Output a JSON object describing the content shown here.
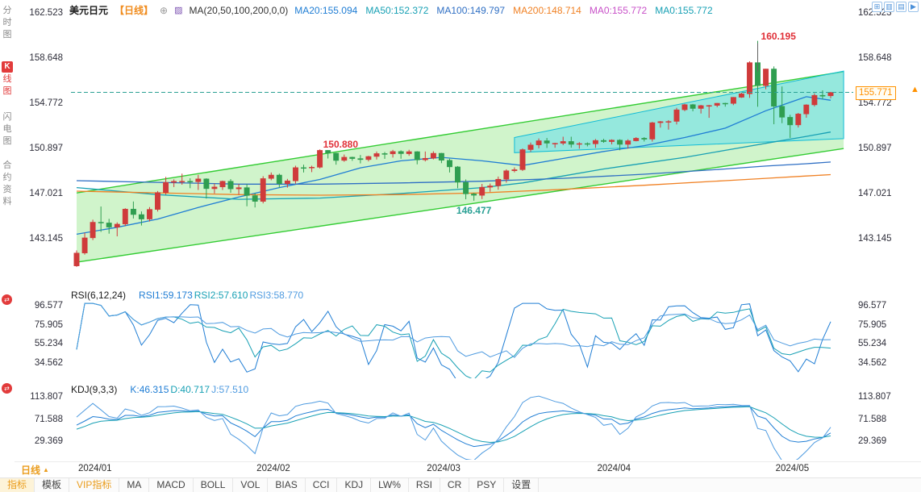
{
  "icons": {
    "add": "⊕",
    "ma_badge": "▨",
    "caret_up": "▲",
    "price_arrow": "▲",
    "swap": "⇄"
  },
  "sidebar": {
    "items": [
      {
        "name": "time-share-chart",
        "label": "分时图",
        "active": false
      },
      {
        "name": "kline-chart",
        "label": "K线图",
        "active": true
      },
      {
        "name": "lightning-chart",
        "label": "闪电图",
        "active": false
      },
      {
        "name": "contract-info",
        "label": "合约资料",
        "active": false
      }
    ]
  },
  "header": {
    "symbol": "美元日元",
    "period_tag": "【日线】",
    "ma_group": "MA(20,50,100,200,0,0)",
    "ma_values": [
      {
        "label": "MA20:155.094",
        "color": "#1f7dd4"
      },
      {
        "label": "MA50:152.372",
        "color": "#17a0b4"
      },
      {
        "label": "MA100:149.797",
        "color": "#2f6fc4"
      },
      {
        "label": "MA200:148.714",
        "color": "#f08124"
      },
      {
        "label": "MA0:155.772",
        "color": "#c850c8"
      },
      {
        "label": "MA0:155.772",
        "color": "#17a0b4"
      }
    ],
    "icons": [
      {
        "name": "grid-layout-icon",
        "glyph": "⊞"
      },
      {
        "name": "candle-chart-icon",
        "glyph": "▥"
      },
      {
        "name": "bar-chart-icon",
        "glyph": "▤"
      },
      {
        "name": "forward-icon",
        "glyph": "▶"
      }
    ]
  },
  "chart_data": [
    {
      "type": "candlestick",
      "symbol": "美元日元",
      "period": "日线",
      "y_ticks": [
        162.523,
        158.648,
        154.772,
        150.897,
        147.021,
        143.145
      ],
      "x_labels": [
        "2024/01",
        "2024/02",
        "2024/03",
        "2024/04",
        "2024/05"
      ],
      "x_label_indices": [
        0,
        22,
        43,
        64,
        86
      ],
      "current_price": 155.771,
      "current_price_text": "155.771",
      "up_color": "#cf3b3b",
      "down_color": "#2f9e50",
      "price_line": {
        "value": 155.771,
        "color": "#2aa094",
        "style": "dashed"
      },
      "candles": [
        [
          140.88,
          142.21,
          140.8,
          141.99
        ],
        [
          141.99,
          143.73,
          141.85,
          143.29
        ],
        [
          143.29,
          144.85,
          143.1,
          144.63
        ],
        [
          144.63,
          145.98,
          143.8,
          144.57
        ],
        [
          144.57,
          144.92,
          143.65,
          144.21
        ],
        [
          144.21,
          144.62,
          143.42,
          144.47
        ],
        [
          144.47,
          145.83,
          144.3,
          145.76
        ],
        [
          145.76,
          146.41,
          144.95,
          145.29
        ],
        [
          145.29,
          145.56,
          144.35,
          144.9
        ],
        [
          144.9,
          145.93,
          144.7,
          145.73
        ],
        [
          145.73,
          147.31,
          145.55,
          147.18
        ],
        [
          147.18,
          148.52,
          146.99,
          148.05
        ],
        [
          148.05,
          148.31,
          147.65,
          148.14
        ],
        [
          148.14,
          148.8,
          147.85,
          148.15
        ],
        [
          148.15,
          148.4,
          147.55,
          148.1
        ],
        [
          148.1,
          148.7,
          147.4,
          148.35
        ],
        [
          148.35,
          148.4,
          146.66,
          147.51
        ],
        [
          147.51,
          147.95,
          147.1,
          147.66
        ],
        [
          147.66,
          148.2,
          147.4,
          148.15
        ],
        [
          148.15,
          148.33,
          147.16,
          147.49
        ],
        [
          147.49,
          147.91,
          147.0,
          147.6
        ],
        [
          147.6,
          147.9,
          146.0,
          146.92
        ],
        [
          146.92,
          147.12,
          145.9,
          146.42
        ],
        [
          146.42,
          148.58,
          146.25,
          148.38
        ],
        [
          148.38,
          148.9,
          148.23,
          148.68
        ],
        [
          148.68,
          148.8,
          147.61,
          147.94
        ],
        [
          147.94,
          148.35,
          147.6,
          148.18
        ],
        [
          148.18,
          149.48,
          147.95,
          149.32
        ],
        [
          149.32,
          149.57,
          148.9,
          149.29
        ],
        [
          149.29,
          149.48,
          148.93,
          149.35
        ],
        [
          149.35,
          150.88,
          149.24,
          150.8
        ],
        [
          150.8,
          150.82,
          150.1,
          150.56
        ],
        [
          150.56,
          150.6,
          149.57,
          149.93
        ],
        [
          149.93,
          150.44,
          149.82,
          150.21
        ],
        [
          150.21,
          150.25,
          149.9,
          150.09
        ],
        [
          150.09,
          150.4,
          149.68,
          150.0
        ],
        [
          150.0,
          150.33,
          149.85,
          150.27
        ],
        [
          150.27,
          150.7,
          150.01,
          150.52
        ],
        [
          150.52,
          150.66,
          150.07,
          150.49
        ],
        [
          150.49,
          150.84,
          150.18,
          150.7
        ],
        [
          150.7,
          150.8,
          150.08,
          150.51
        ],
        [
          150.51,
          150.85,
          150.33,
          150.69
        ],
        [
          150.69,
          150.73,
          149.6,
          149.98
        ],
        [
          149.98,
          150.7,
          149.85,
          150.12
        ],
        [
          150.12,
          150.72,
          150.02,
          150.55
        ],
        [
          150.55,
          150.58,
          149.7,
          149.95
        ],
        [
          149.95,
          150.08,
          148.9,
          149.38
        ],
        [
          149.38,
          149.45,
          147.55,
          148.06
        ],
        [
          148.06,
          148.3,
          146.6,
          147.06
        ],
        [
          147.06,
          147.15,
          146.477,
          146.94
        ],
        [
          146.94,
          147.92,
          146.62,
          147.64
        ],
        [
          147.64,
          147.95,
          147.24,
          147.75
        ],
        [
          147.75,
          148.55,
          147.42,
          148.32
        ],
        [
          148.32,
          149.17,
          148.03,
          149.05
        ],
        [
          149.05,
          149.34,
          148.91,
          149.14
        ],
        [
          149.14,
          150.96,
          149.03,
          150.86
        ],
        [
          150.86,
          151.47,
          150.67,
          151.26
        ],
        [
          151.26,
          151.82,
          150.97,
          151.62
        ],
        [
          151.62,
          151.86,
          151.0,
          151.41
        ],
        [
          151.41,
          151.45,
          151.02,
          151.41
        ],
        [
          151.41,
          151.97,
          151.25,
          151.56
        ],
        [
          151.56,
          151.97,
          151.03,
          151.31
        ],
        [
          151.31,
          151.5,
          150.94,
          151.38
        ],
        [
          151.38,
          151.48,
          151.14,
          151.35
        ],
        [
          151.35,
          151.77,
          151.01,
          151.65
        ],
        [
          151.65,
          151.79,
          151.45,
          151.55
        ],
        [
          151.55,
          151.74,
          151.31,
          151.68
        ],
        [
          151.68,
          151.75,
          150.81,
          151.31
        ],
        [
          151.31,
          151.75,
          150.95,
          151.62
        ],
        [
          151.62,
          151.93,
          151.57,
          151.84
        ],
        [
          151.84,
          151.93,
          151.56,
          151.76
        ],
        [
          151.76,
          153.24,
          151.55,
          153.17
        ],
        [
          153.17,
          153.32,
          152.75,
          153.26
        ],
        [
          153.26,
          153.39,
          152.58,
          153.28
        ],
        [
          153.28,
          154.45,
          153.02,
          154.28
        ],
        [
          154.28,
          154.79,
          154.16,
          154.72
        ],
        [
          154.72,
          154.78,
          154.15,
          154.39
        ],
        [
          154.39,
          154.7,
          153.96,
          154.64
        ],
        [
          154.64,
          154.7,
          153.59,
          154.65
        ],
        [
          154.65,
          154.86,
          154.5,
          154.84
        ],
        [
          154.84,
          154.88,
          154.55,
          154.82
        ],
        [
          154.82,
          155.37,
          154.68,
          155.35
        ],
        [
          155.35,
          155.75,
          155.3,
          155.65
        ],
        [
          155.65,
          158.44,
          155.3,
          158.33
        ],
        [
          158.33,
          160.195,
          154.54,
          156.35
        ],
        [
          156.35,
          157.8,
          156.04,
          157.78
        ],
        [
          157.78,
          158.0,
          153.04,
          154.58
        ],
        [
          154.58,
          156.28,
          153.13,
          153.64
        ],
        [
          153.64,
          153.85,
          151.86,
          152.98
        ],
        [
          152.98,
          154.01,
          152.76,
          153.92
        ],
        [
          153.92,
          154.75,
          153.6,
          154.7
        ],
        [
          154.7,
          155.69,
          154.56,
          155.52
        ],
        [
          155.52,
          155.95,
          155.2,
          155.48
        ],
        [
          155.48,
          155.81,
          155.27,
          155.771
        ]
      ],
      "ma_lines": [
        {
          "name": "MA20",
          "color": "#1f7dd4",
          "points": [
            [
              0,
              143.6
            ],
            [
              5,
              144.2
            ],
            [
              10,
              144.9
            ],
            [
              15,
              145.9
            ],
            [
              20,
              146.8
            ],
            [
              25,
              147.6
            ],
            [
              30,
              148.3
            ],
            [
              35,
              149.3
            ],
            [
              40,
              149.9
            ],
            [
              45,
              150.2
            ],
            [
              50,
              149.9
            ],
            [
              55,
              149.5
            ],
            [
              60,
              150.1
            ],
            [
              65,
              150.7
            ],
            [
              70,
              151.2
            ],
            [
              75,
              151.9
            ],
            [
              80,
              152.7
            ],
            [
              85,
              154.2
            ],
            [
              90,
              155.4
            ],
            [
              93,
              155.094
            ]
          ]
        },
        {
          "name": "MA50",
          "color": "#17a0b4",
          "points": [
            [
              0,
              147.6
            ],
            [
              10,
              147.0
            ],
            [
              20,
              146.6
            ],
            [
              30,
              146.7
            ],
            [
              40,
              147.1
            ],
            [
              50,
              147.6
            ],
            [
              55,
              148.0
            ],
            [
              60,
              148.6
            ],
            [
              65,
              149.2
            ],
            [
              70,
              149.7
            ],
            [
              75,
              150.2
            ],
            [
              80,
              150.8
            ],
            [
              85,
              151.4
            ],
            [
              90,
              152.0
            ],
            [
              93,
              152.372
            ]
          ]
        },
        {
          "name": "MA100",
          "color": "#2f6fc4",
          "points": [
            [
              0,
              148.2
            ],
            [
              10,
              148.05
            ],
            [
              20,
              147.9
            ],
            [
              30,
              147.9
            ],
            [
              40,
              148.0
            ],
            [
              50,
              148.15
            ],
            [
              60,
              148.4
            ],
            [
              70,
              148.75
            ],
            [
              80,
              149.2
            ],
            [
              85,
              149.45
            ],
            [
              90,
              149.65
            ],
            [
              93,
              149.797
            ]
          ]
        },
        {
          "name": "MA200",
          "color": "#f08124",
          "points": [
            [
              0,
              147.3
            ],
            [
              10,
              147.15
            ],
            [
              20,
              147.0
            ],
            [
              30,
              146.95
            ],
            [
              40,
              147.0
            ],
            [
              50,
              147.15
            ],
            [
              60,
              147.45
            ],
            [
              70,
              147.8
            ],
            [
              80,
              148.2
            ],
            [
              85,
              148.4
            ],
            [
              90,
              148.6
            ],
            [
              93,
              148.714
            ]
          ]
        }
      ],
      "channel": {
        "stroke": "#33cc33",
        "fill": "rgba(150,230,140,0.45)",
        "upper": [
          [
            0,
            147.15
          ],
          [
            94.6,
            157.55
          ]
        ],
        "lower": [
          [
            0,
            141.2
          ],
          [
            94.6,
            150.95
          ]
        ]
      },
      "highlight_channel": {
        "stroke": "#12bcd6",
        "fill": "rgba(90,220,240,0.5)",
        "points": [
          [
            54,
            151.9
          ],
          [
            94.6,
            157.6
          ],
          [
            94.6,
            151.8
          ],
          [
            54,
            150.6
          ]
        ]
      },
      "annotations": [
        {
          "text": "160.195",
          "index": 84,
          "price": 160.195,
          "role": "period-high",
          "color": "#e03038",
          "placement": "above-right"
        },
        {
          "text": "150.880",
          "index": 30,
          "price": 150.88,
          "role": "swing-high",
          "color": "#e03038",
          "placement": "above-right"
        },
        {
          "text": "146.477",
          "index": 49,
          "price": 146.477,
          "role": "swing-low",
          "color": "#2aa094",
          "placement": "below"
        }
      ]
    },
    {
      "type": "line",
      "name": "RSI",
      "title": "RSI(6,12,24)",
      "params": [
        6,
        12,
        24
      ],
      "y_ticks": [
        96.577,
        75.905,
        55.234,
        34.562
      ],
      "series_labels": [
        {
          "label": "RSI1:59.173",
          "color": "#1f7dd4"
        },
        {
          "label": "RSI2:57.610",
          "color": "#17a0b4"
        },
        {
          "label": "RSI3:58.770",
          "color": "#4f9be0"
        }
      ],
      "derived_from": "candles"
    },
    {
      "type": "line",
      "name": "KDJ",
      "title": "KDJ(9,3,3)",
      "params": [
        9,
        3,
        3
      ],
      "y_ticks": [
        113.807,
        71.588,
        29.369
      ],
      "series_labels": [
        {
          "label": "K:46.315",
          "color": "#1f7dd4"
        },
        {
          "label": "D:40.717",
          "color": "#17a0b4"
        },
        {
          "label": "J:57.510",
          "color": "#4f9be0"
        }
      ],
      "derived_from": "candles"
    }
  ],
  "footer": {
    "period_label": "日线",
    "tabs": [
      {
        "name": "indicators",
        "label": "指标",
        "style": "active"
      },
      {
        "name": "templates",
        "label": "模板"
      },
      {
        "name": "vip-indicators",
        "label": "VIP指标",
        "style": "vip"
      },
      {
        "name": "ma",
        "label": "MA"
      },
      {
        "name": "macd",
        "label": "MACD"
      },
      {
        "name": "boll",
        "label": "BOLL"
      },
      {
        "name": "vol",
        "label": "VOL"
      },
      {
        "name": "bias",
        "label": "BIAS"
      },
      {
        "name": "cci",
        "label": "CCI"
      },
      {
        "name": "kdj",
        "label": "KDJ"
      },
      {
        "name": "lwr",
        "label": "LW%"
      },
      {
        "name": "rsi",
        "label": "RSI"
      },
      {
        "name": "cr",
        "label": "CR"
      },
      {
        "name": "psy",
        "label": "PSY"
      },
      {
        "name": "settings",
        "label": "设置"
      }
    ]
  }
}
